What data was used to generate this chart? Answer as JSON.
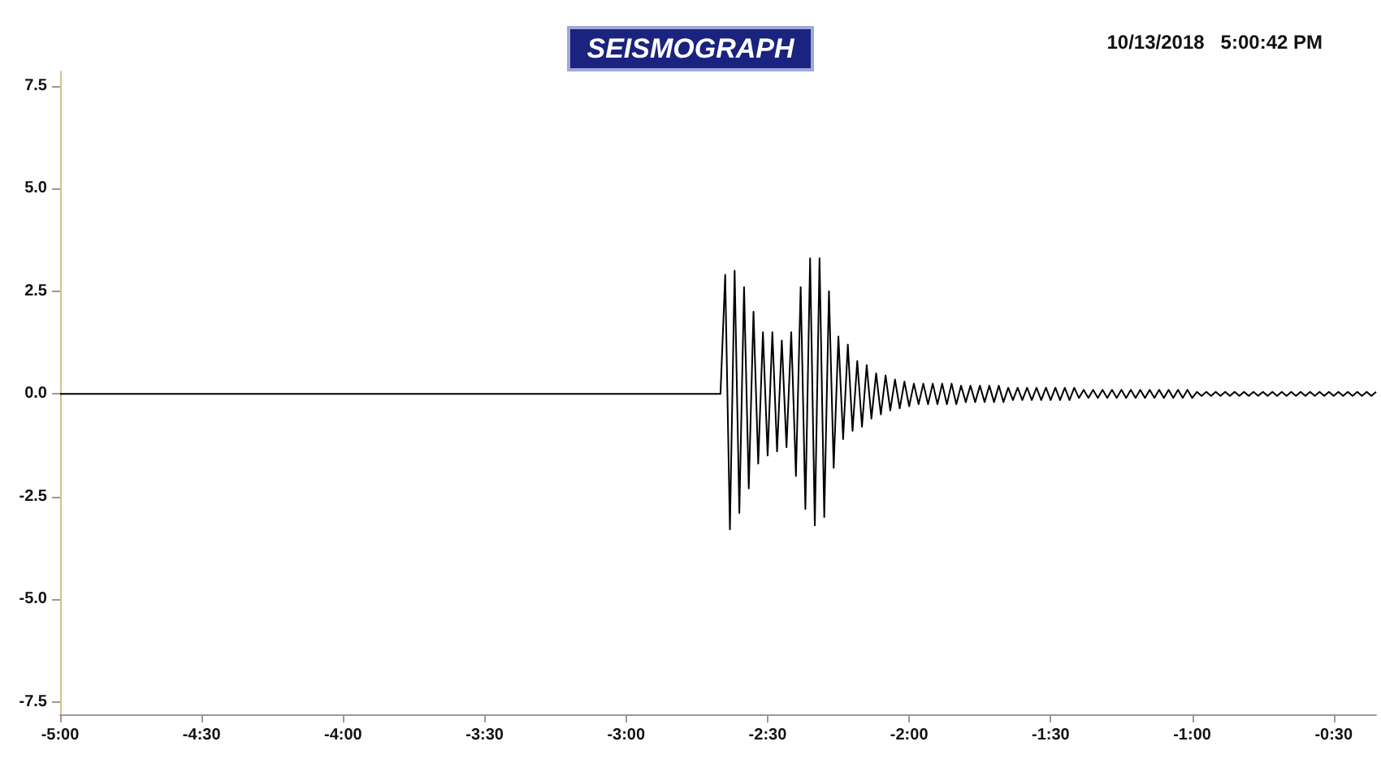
{
  "chart_data": {
    "type": "line",
    "title": "SEISMOGRAPH",
    "annotations": [
      "10/13/2018   5:00:42 PM"
    ],
    "categories": [
      "-5:00",
      null,
      null,
      null,
      null,
      null,
      null,
      null,
      null,
      null,
      null,
      null,
      null,
      null,
      null,
      null,
      null,
      null,
      null,
      null,
      null,
      null,
      null,
      null,
      null,
      null,
      null,
      null,
      null,
      null,
      "-4:30",
      null,
      null,
      null,
      null,
      null,
      null,
      null,
      null,
      null,
      null,
      null,
      null,
      null,
      null,
      null,
      null,
      null,
      null,
      null,
      null,
      null,
      null,
      null,
      null,
      null,
      null,
      null,
      null,
      null,
      "-4:00",
      null,
      null,
      null,
      null,
      null,
      null,
      null,
      null,
      null,
      null,
      null,
      null,
      null,
      null,
      null,
      null,
      null,
      null,
      null,
      null,
      null,
      null,
      null,
      null,
      null,
      null,
      null,
      null,
      null,
      "-3:30",
      null,
      null,
      null,
      null,
      null,
      null,
      null,
      null,
      null,
      null,
      null,
      null,
      null,
      null,
      null,
      null,
      null,
      null,
      null,
      null,
      null,
      null,
      null,
      null,
      null,
      null,
      null,
      null,
      null,
      "-3:00",
      null,
      null,
      null,
      null,
      null,
      null,
      null,
      null,
      null,
      null,
      null,
      null,
      null,
      null,
      null,
      null,
      null,
      null,
      null,
      null,
      null,
      null,
      null,
      null,
      null,
      null,
      null,
      null,
      null,
      "-2:30",
      null,
      null,
      null,
      null,
      null,
      null,
      null,
      null,
      null,
      null,
      null,
      null,
      null,
      null,
      null,
      null,
      null,
      null,
      null,
      null,
      null,
      null,
      null,
      null,
      null,
      null,
      null,
      null,
      null,
      "-2:00",
      null,
      null,
      null,
      null,
      null,
      null,
      null,
      null,
      null,
      null,
      null,
      null,
      null,
      null,
      null,
      null,
      null,
      null,
      null,
      null,
      null,
      null,
      null,
      null,
      null,
      null,
      null,
      null,
      null,
      "-1:30",
      null,
      null,
      null,
      null,
      null,
      null,
      null,
      null,
      null,
      null,
      null,
      null,
      null,
      null,
      null,
      null,
      null,
      null,
      null,
      null,
      null,
      null,
      null,
      null,
      null,
      null,
      null,
      null,
      null,
      "-1:00",
      null,
      null,
      null,
      null,
      null,
      null,
      null,
      null,
      null,
      null,
      null,
      null,
      null,
      null,
      null,
      null,
      null,
      null,
      null,
      null,
      null,
      null,
      null,
      null,
      null,
      null,
      null,
      null,
      null,
      "-0:30",
      null,
      null,
      null,
      null,
      null,
      null,
      null,
      null,
      null
    ],
    "ylim": [
      -7.8,
      7.85
    ],
    "yticks": [
      {
        "value": -7.5,
        "label": "-7.5"
      },
      {
        "value": -5,
        "label": "-5.0"
      },
      {
        "value": -2.5,
        "label": "-2.5"
      },
      {
        "value": 0,
        "label": "0.0"
      },
      {
        "value": 2.5,
        "label": "2.5"
      },
      {
        "value": 5,
        "label": "5.0"
      },
      {
        "value": 7.5,
        "label": "7.5"
      }
    ],
    "grid": false,
    "marker": "none",
    "line_style": "solid",
    "series": [
      {
        "color": "#000000",
        "values": [
          0,
          0,
          0,
          0,
          0,
          0,
          0,
          0,
          0,
          0,
          0,
          0,
          0,
          0,
          0,
          0,
          0,
          0,
          0,
          0,
          0,
          0,
          0,
          0,
          0,
          0,
          0,
          0,
          0,
          0,
          0,
          0,
          0,
          0,
          0,
          0,
          0,
          0,
          0,
          0,
          0,
          0,
          0,
          0,
          0,
          0,
          0,
          0,
          0,
          0,
          0,
          0,
          0,
          0,
          0,
          0,
          0,
          0,
          0,
          0,
          0,
          0,
          0,
          0,
          0,
          0,
          0,
          0,
          0,
          0,
          0,
          0,
          0,
          0,
          0,
          0,
          0,
          0,
          0,
          0,
          0,
          0,
          0,
          0,
          0,
          0,
          0,
          0,
          0,
          0,
          0,
          0,
          0,
          0,
          0,
          0,
          0,
          0,
          0,
          0,
          0,
          0,
          0,
          0,
          0,
          0,
          0,
          0,
          0,
          0,
          0,
          0,
          0,
          0,
          0,
          0,
          0,
          0,
          0,
          0,
          0,
          0,
          0,
          0,
          0,
          0,
          0,
          0,
          0,
          0,
          0,
          0,
          0,
          0,
          0,
          0,
          0,
          0,
          0,
          0,
          0,
          2.9,
          -3.3,
          3.0,
          -2.9,
          2.6,
          -2.3,
          2.0,
          -1.7,
          1.5,
          -1.5,
          1.5,
          -1.4,
          1.3,
          -1.3,
          1.5,
          -2.0,
          2.6,
          -2.8,
          3.3,
          -3.2,
          3.3,
          -3.0,
          2.5,
          -1.8,
          1.4,
          -1.1,
          1.2,
          -0.9,
          0.8,
          -0.8,
          0.7,
          -0.6,
          0.5,
          -0.5,
          0.45,
          -0.4,
          0.35,
          -0.35,
          0.3,
          -0.3,
          0.25,
          -0.25,
          0.25,
          -0.25,
          0.25,
          -0.25,
          0.25,
          -0.25,
          0.25,
          -0.25,
          0.2,
          -0.2,
          0.2,
          -0.2,
          0.2,
          -0.2,
          0.2,
          -0.2,
          0.2,
          -0.2,
          0.15,
          -0.15,
          0.15,
          -0.15,
          0.15,
          -0.15,
          0.15,
          -0.15,
          0.15,
          -0.15,
          0.15,
          -0.15,
          0.15,
          -0.15,
          0.15,
          -0.1,
          0.1,
          -0.1,
          0.1,
          -0.1,
          0.1,
          -0.1,
          0.1,
          -0.1,
          0.1,
          -0.1,
          0.1,
          -0.1,
          0.1,
          -0.1,
          0.1,
          -0.1,
          0.1,
          -0.1,
          0.1,
          -0.1,
          0.1,
          -0.1,
          0.1,
          -0.1,
          0.05,
          -0.05,
          0.05,
          -0.05,
          0.05,
          -0.05,
          0.05,
          -0.05,
          0.05,
          -0.05,
          0.05,
          -0.05,
          0.05,
          -0.05,
          0.05,
          -0.05,
          0.05,
          -0.05,
          0.05,
          -0.05,
          0.05,
          -0.05,
          0.05,
          -0.05,
          0.05,
          -0.05,
          0.05,
          -0.05,
          0.05,
          -0.05,
          0.05,
          -0.05,
          0.05,
          -0.05,
          0.05,
          -0.05,
          0.05,
          -0.05,
          0.05
        ]
      }
    ]
  }
}
